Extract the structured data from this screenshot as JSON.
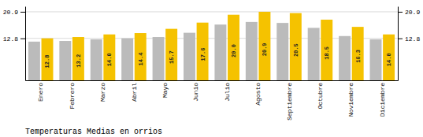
{
  "chart_data": {
    "type": "bar",
    "title": "Temperaturas Medias en orrios",
    "categories": [
      "Enero",
      "Febrero",
      "Marzo",
      "Abril",
      "Mayo",
      "Junio",
      "Julio",
      "Agosto",
      "Septiembre",
      "Octubre",
      "Noviembre",
      "Diciembre"
    ],
    "series": [
      {
        "color": "#BBBBBB",
        "values": [
          11.8,
          12.0,
          12.5,
          12.8,
          13.2,
          14.5,
          17.0,
          17.8,
          17.5,
          16.0,
          13.5,
          12.5
        ]
      },
      {
        "color": "#F5C200",
        "values": [
          12.8,
          13.2,
          14.0,
          14.4,
          15.7,
          17.6,
          20.0,
          20.9,
          20.5,
          18.5,
          16.3,
          14.0
        ],
        "data_labels": true,
        "value_labels": [
          "12.8",
          "13.2",
          "14.0",
          "14.4",
          "15.7",
          "17.6",
          "20.0",
          "20.9",
          "20.5",
          "18.5",
          "16.3",
          "14.0"
        ]
      }
    ],
    "ylim": [
      0,
      22.572
    ],
    "yticks": [
      12.8,
      20.9
    ],
    "y2lim": [
      0,
      22.572
    ],
    "y2ticks": [
      12.8,
      20.9
    ],
    "grid": true
  }
}
